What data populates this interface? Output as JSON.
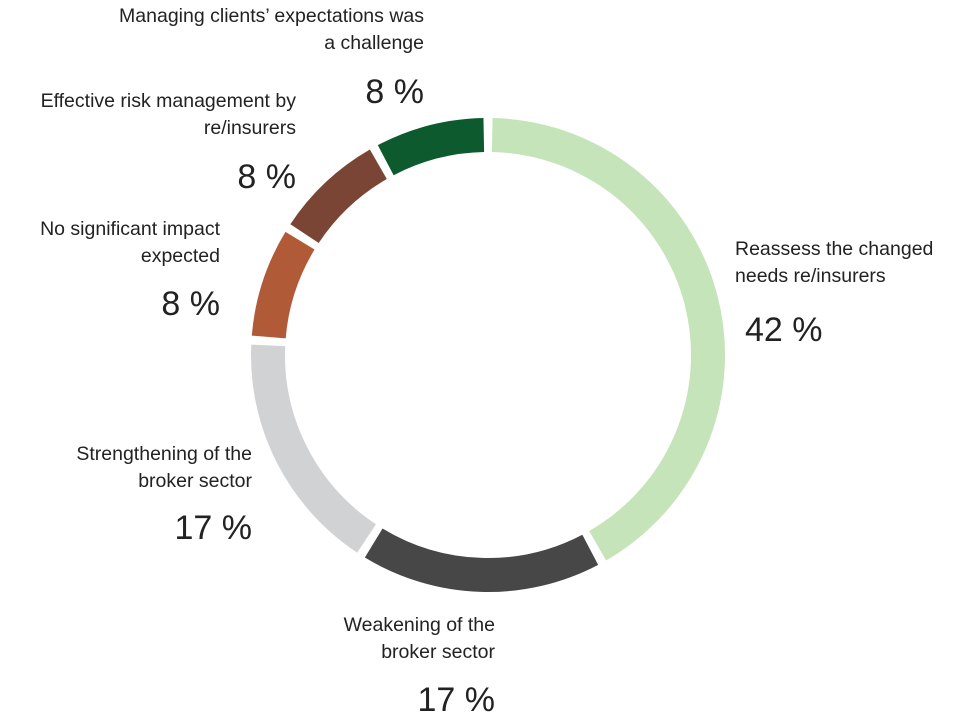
{
  "chart_data": {
    "type": "donut",
    "categories": [
      "Reassess the changed needs re/insurers",
      "Weakening of the broker sector",
      "Strengthening of the broker sector",
      "No significant impact expected",
      "Effective risk management by re/insurers",
      "Managing clients’ expectations was a challenge"
    ],
    "values": [
      42,
      17,
      17,
      8,
      8,
      8
    ],
    "value_labels": [
      "42 %",
      "17 %",
      "17 %",
      "8 %",
      "8 %",
      "8 %"
    ],
    "colors": [
      "#c6e4b9",
      "#474747",
      "#d1d2d3",
      "#b05a37",
      "#7a4535",
      "#0c5a2e"
    ]
  }
}
